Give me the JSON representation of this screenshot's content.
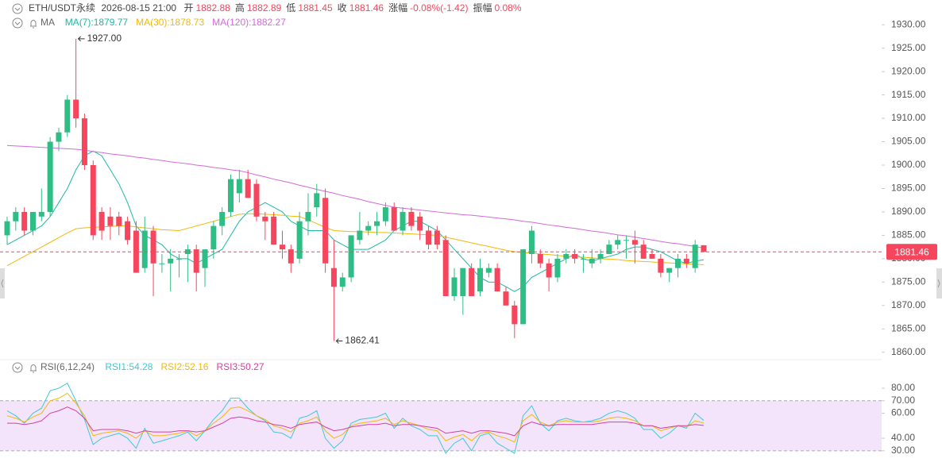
{
  "header": {
    "symbol": "ETH/USDT永续",
    "time": "2026-08-15 21:00",
    "fields": [
      {
        "label": "开",
        "value": "1882.88"
      },
      {
        "label": "高",
        "value": "1882.89"
      },
      {
        "label": "低",
        "value": "1881.45"
      },
      {
        "label": "收",
        "value": "1881.46"
      },
      {
        "label": "涨幅",
        "value": "-0.08%(-1.42)"
      },
      {
        "label": "振幅",
        "value": "0.08%"
      }
    ]
  },
  "chart_data": [
    {
      "type": "candlestick",
      "indicator": "MA",
      "up_color": "#2ebd85",
      "down_color": "#f6465d",
      "open": [
        1885,
        1888,
        1890,
        1886,
        1889,
        1890,
        1905,
        1907,
        1914,
        1910,
        1900,
        1890,
        1889,
        1889,
        1888,
        1886,
        1878,
        1886,
        1879,
        1879,
        1880,
        1881,
        1882,
        1878,
        1882,
        1887,
        1890,
        1894,
        1897,
        1896,
        1889,
        1889,
        1883,
        1882,
        1880,
        1888,
        1891,
        1893,
        1878,
        1874,
        1876,
        1884,
        1886,
        1887,
        1888,
        1891,
        1886,
        1890,
        1889,
        1886,
        1886,
        1884,
        1872,
        1872,
        1878,
        1873,
        1877,
        1878,
        1873,
        1870,
        1866,
        1881,
        1881,
        1879,
        1876,
        1880,
        1881,
        1880,
        1879,
        1880,
        1881,
        1883,
        1884,
        1884,
        1883,
        1881,
        1880,
        1877,
        1878,
        1880,
        1878,
        1882.88
      ],
      "high": [
        1889,
        1891,
        1891,
        1890,
        1895,
        1906,
        1908,
        1915,
        1927,
        1911,
        1901,
        1891,
        1891,
        1890,
        1889,
        1888,
        1889,
        1887,
        1881,
        1882,
        1881,
        1883,
        1883,
        1882,
        1888,
        1891,
        1898,
        1899,
        1899,
        1897,
        1890,
        1890,
        1886,
        1883,
        1890,
        1894,
        1896,
        1895,
        1884,
        1877,
        1885,
        1890,
        1888,
        1890,
        1892,
        1892,
        1891,
        1891,
        1890,
        1887,
        1887,
        1885,
        1878,
        1878,
        1879,
        1880,
        1879,
        1879,
        1874,
        1871,
        1882,
        1887,
        1882,
        1880,
        1881,
        1882,
        1882,
        1881,
        1882,
        1882,
        1884,
        1885,
        1885,
        1886,
        1884,
        1882,
        1881,
        1878,
        1881,
        1881,
        1884,
        1882.89
      ],
      "low": [
        1883,
        1886,
        1885,
        1885,
        1888,
        1889,
        1903,
        1906,
        1908,
        1899,
        1884,
        1884,
        1884,
        1885,
        1883,
        1877,
        1877,
        1872,
        1877,
        1873,
        1876,
        1875,
        1873,
        1874,
        1880,
        1885,
        1889,
        1892,
        1893,
        1888,
        1884,
        1883,
        1880,
        1877,
        1879,
        1885,
        1889,
        1877,
        1862.41,
        1873,
        1875,
        1883,
        1885,
        1885,
        1887,
        1886,
        1885,
        1886,
        1884,
        1882,
        1882,
        1872,
        1871,
        1868,
        1872,
        1872,
        1876,
        1873,
        1870,
        1863,
        1866,
        1879,
        1878,
        1873,
        1875,
        1879,
        1879,
        1877,
        1878,
        1879,
        1881,
        1882,
        1880,
        1879,
        1880,
        1880,
        1876,
        1875,
        1876,
        1878,
        1877,
        1881.45
      ],
      "close": [
        1888,
        1890,
        1886,
        1890,
        1890,
        1905,
        1907,
        1914,
        1910,
        1900,
        1885,
        1886,
        1887,
        1887,
        1884,
        1877,
        1886,
        1879,
        1879,
        1880,
        1880,
        1882,
        1877,
        1882,
        1887,
        1890,
        1897,
        1897,
        1893,
        1889,
        1888,
        1883,
        1882,
        1879,
        1888,
        1890,
        1894,
        1879,
        1874,
        1876,
        1885,
        1886,
        1887,
        1888,
        1891,
        1886,
        1890,
        1887,
        1886,
        1883,
        1883,
        1872,
        1876,
        1878,
        1872,
        1878,
        1878,
        1873,
        1870,
        1866,
        1882,
        1886,
        1879,
        1876,
        1880,
        1881,
        1880,
        1880,
        1880,
        1881,
        1883,
        1884,
        1884,
        1883,
        1880,
        1880,
        1877,
        1878,
        1880,
        1879,
        1883,
        1881.46
      ],
      "series": [
        {
          "name": "MA(7):1879.77",
          "color": "#1fb8a6",
          "values": [
            1883,
            1884,
            1885,
            1886,
            1887,
            1889,
            1892,
            1895,
            1899,
            1902,
            1903,
            1902,
            1899,
            1896,
            1892,
            1887,
            1885,
            1884,
            1883,
            1881,
            1880,
            1880,
            1879,
            1880,
            1881,
            1882,
            1885,
            1888,
            1890,
            1891,
            1892,
            1891,
            1890,
            1888,
            1887,
            1886,
            1886,
            1886,
            1884,
            1883,
            1882,
            1882,
            1882,
            1883,
            1884,
            1886,
            1887,
            1888,
            1888,
            1887,
            1886,
            1884,
            1882,
            1880,
            1878,
            1876,
            1875,
            1875,
            1874,
            1873,
            1874,
            1876,
            1877,
            1878,
            1879,
            1880,
            1881,
            1880,
            1879.5,
            1880,
            1880.5,
            1881,
            1882,
            1882.5,
            1882.5,
            1882,
            1881.5,
            1880.5,
            1879.5,
            1879,
            1879.5,
            1879.77
          ]
        },
        {
          "name": "MA(30):1878.73",
          "color": "#f0b90b",
          "values": [
            1878.5,
            1879.5,
            1880.5,
            1881.5,
            1882.5,
            1883.5,
            1884.5,
            1885.5,
            1886.4,
            1886.6,
            1886.7,
            1886.8,
            1886.9,
            1887.0,
            1887.0,
            1886.8,
            1886.6,
            1886.4,
            1886.2,
            1886.1,
            1886.0,
            1886.5,
            1887.0,
            1887.5,
            1888.0,
            1888.5,
            1889.0,
            1889.5,
            1889.6,
            1889.6,
            1889.5,
            1889.4,
            1889.3,
            1889.1,
            1889.0,
            1888.3,
            1887.5,
            1886.7,
            1886.0,
            1885.9,
            1885.8,
            1885.8,
            1885.7,
            1885.6,
            1885.6,
            1885.5,
            1885.4,
            1885.3,
            1885.2,
            1885.1,
            1885.0,
            1884.6,
            1884.2,
            1883.8,
            1883.4,
            1883.0,
            1882.6,
            1882.2,
            1881.8,
            1881.5,
            1881.3,
            1881.2,
            1881.0,
            1880.9,
            1880.7,
            1880.5,
            1880.4,
            1880.3,
            1880.2,
            1880.0,
            1879.9,
            1879.8,
            1879.6,
            1879.5,
            1879.4,
            1879.3,
            1879.2,
            1879.1,
            1879.0,
            1878.9,
            1878.8,
            1878.73
          ]
        },
        {
          "name": "MA(120):1882.27",
          "color": "#d26ad6",
          "values": [
            1904.2,
            1904.1,
            1904.0,
            1903.9,
            1903.8,
            1903.7,
            1903.6,
            1903.5,
            1903.4,
            1903.2,
            1902.9,
            1902.7,
            1902.4,
            1902.2,
            1902.0,
            1901.7,
            1901.5,
            1901.2,
            1901.0,
            1900.7,
            1900.5,
            1900.3,
            1900.0,
            1899.8,
            1899.5,
            1899.3,
            1899.0,
            1898.8,
            1898.4,
            1897.9,
            1897.5,
            1897.0,
            1896.6,
            1896.2,
            1895.7,
            1895.3,
            1894.8,
            1894.4,
            1894.0,
            1893.5,
            1893.1,
            1892.7,
            1892.2,
            1891.8,
            1891.4,
            1891.0,
            1890.8,
            1890.6,
            1890.4,
            1890.2,
            1890.0,
            1889.8,
            1889.6,
            1889.4,
            1889.3,
            1889.1,
            1888.9,
            1888.7,
            1888.5,
            1888.3,
            1888.0,
            1887.8,
            1887.5,
            1887.2,
            1887.0,
            1886.7,
            1886.5,
            1886.2,
            1885.9,
            1885.7,
            1885.4,
            1885.1,
            1884.9,
            1884.6,
            1884.3,
            1884.0,
            1883.7,
            1883.4,
            1883.2,
            1882.9,
            1882.6,
            1882.27
          ]
        }
      ],
      "annotations": [
        {
          "value": 1927,
          "label": "1927.00"
        },
        {
          "value": 1862.41,
          "label": "1862.41"
        }
      ],
      "last_price": {
        "value": 1881.46,
        "label": "1881.46",
        "color": "#f6465d"
      },
      "ylim": [
        1858.6,
        1931.9
      ],
      "yticks": [
        {
          "value": 1860,
          "label": "1860.00"
        },
        {
          "value": 1865,
          "label": "1865.00"
        },
        {
          "value": 1870,
          "label": "1870.00"
        },
        {
          "value": 1875,
          "label": "1875.00"
        },
        {
          "value": 1880,
          "label": "1880.00"
        },
        {
          "value": 1885,
          "label": "1885.00"
        },
        {
          "value": 1890,
          "label": "1890.00"
        },
        {
          "value": 1895,
          "label": "1895.00"
        },
        {
          "value": 1900,
          "label": "1900.00"
        },
        {
          "value": 1905,
          "label": "1905.00"
        },
        {
          "value": 1910,
          "label": "1910.00"
        },
        {
          "value": 1915,
          "label": "1915.00"
        },
        {
          "value": 1920,
          "label": "1920.00"
        },
        {
          "value": 1925,
          "label": "1925.00"
        },
        {
          "value": 1930,
          "label": "1930.00"
        }
      ]
    },
    {
      "type": "line",
      "indicator": "RSI(6,12,24)",
      "band": [
        30,
        70
      ],
      "band_color": "#f3e4fb",
      "series": [
        {
          "name": "RSI1:54.28",
          "color": "#3ec9d6",
          "values": [
            62,
            58,
            52,
            60,
            64,
            78,
            80,
            84,
            70,
            55,
            35,
            40,
            42,
            44,
            40,
            32,
            48,
            36,
            38,
            40,
            42,
            45,
            38,
            46,
            55,
            62,
            72,
            72,
            64,
            58,
            54,
            45,
            44,
            40,
            56,
            58,
            62,
            40,
            32,
            38,
            52,
            55,
            56,
            57,
            60,
            48,
            56,
            50,
            47,
            42,
            42,
            28,
            36,
            40,
            30,
            42,
            44,
            36,
            32,
            28,
            58,
            66,
            52,
            46,
            54,
            56,
            54,
            53,
            54,
            56,
            60,
            62,
            60,
            56,
            47,
            47,
            40,
            44,
            50,
            48,
            60,
            54.28
          ]
        },
        {
          "name": "RSI2:52.16",
          "color": "#f0b90b",
          "values": [
            58,
            56,
            53,
            57,
            60,
            70,
            72,
            76,
            68,
            58,
            42,
            44,
            45,
            46,
            44,
            40,
            46,
            42,
            42,
            43,
            44,
            46,
            42,
            46,
            52,
            57,
            64,
            65,
            62,
            58,
            55,
            50,
            48,
            45,
            52,
            54,
            57,
            46,
            40,
            43,
            50,
            52,
            53,
            54,
            56,
            51,
            54,
            52,
            50,
            47,
            46,
            38,
            41,
            43,
            38,
            44,
            45,
            42,
            40,
            37,
            54,
            59,
            53,
            50,
            53,
            54,
            53,
            53,
            53,
            54,
            56,
            57,
            56,
            54,
            50,
            50,
            46,
            48,
            50,
            49,
            54,
            52.16
          ]
        },
        {
          "name": "RSI3:50.27",
          "color": "#d6409f",
          "values": [
            52,
            52,
            51,
            52,
            54,
            60,
            62,
            65,
            62,
            56,
            46,
            47,
            47,
            47,
            46,
            44,
            46,
            45,
            45,
            45,
            46,
            46,
            45,
            46,
            49,
            52,
            56,
            57,
            56,
            54,
            53,
            51,
            50,
            48,
            51,
            52,
            53,
            49,
            46,
            47,
            49,
            50,
            51,
            51,
            52,
            50,
            51,
            51,
            50,
            49,
            48,
            44,
            45,
            46,
            44,
            46,
            46,
            45,
            44,
            42,
            50,
            53,
            51,
            50,
            51,
            51,
            51,
            51,
            51,
            52,
            53,
            53,
            53,
            52,
            50,
            50,
            48,
            49,
            50,
            50,
            51,
            50.27
          ]
        }
      ],
      "ylim": [
        21,
        87
      ],
      "yticks": [
        {
          "value": 30,
          "label": "30.00"
        },
        {
          "value": 40,
          "label": "40.00"
        },
        {
          "value": 60,
          "label": "60.00"
        },
        {
          "value": 70,
          "label": "70.00"
        },
        {
          "value": 80,
          "label": "80.00"
        }
      ]
    }
  ]
}
